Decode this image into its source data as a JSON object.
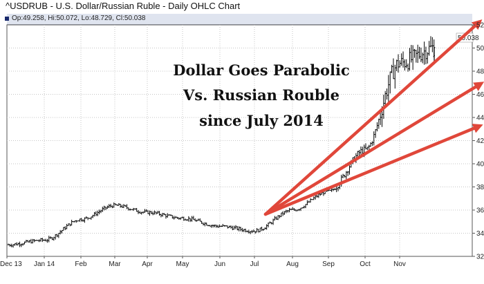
{
  "title": "^USDRUB - U.S. Dollar/Russian Ruble - Daily OHLC Chart",
  "ohlc_readout": "Op:49.258, Hi:50.072, Lo:48.729, Cl:50.038",
  "last_value_label": "50.038",
  "annotation": [
    "Dollar Goes Parabolic",
    "Vs. Russian Rouble",
    "since July 2014"
  ],
  "colors": {
    "candles": "#000000",
    "arrows": "#e0473a",
    "grid": "#c4c4c4",
    "header_bar": "#dfe4ef"
  },
  "chart_data": {
    "type": "line",
    "style": "daily OHLC bars",
    "grid": true,
    "x_tick_labels": [
      "Dec 13",
      "Jan 14",
      "Feb",
      "Mar",
      "Apr",
      "May",
      "Jun",
      "Jul",
      "Aug",
      "Sep",
      "Oct",
      "Nov"
    ],
    "y_tick_labels": [
      "32.000",
      "34.000",
      "36.000",
      "38.000",
      "40.000",
      "42.000",
      "44.000",
      "46.000",
      "48.000",
      "50.000",
      "52.000"
    ],
    "ylim": [
      32,
      52
    ],
    "last": {
      "open": 49.258,
      "high": 50.072,
      "low": 48.729,
      "close": 50.038
    },
    "series": [
      {
        "x": [
          "Dec 13",
          "Jan 14",
          "Feb",
          "Mar",
          "Apr",
          "May",
          "Jun",
          "Jul",
          "Aug",
          "Sep",
          "Oct",
          "Nov"
        ],
        "values": [
          33.0,
          33.4,
          35.2,
          36.4,
          35.8,
          35.3,
          34.6,
          34.2,
          36.0,
          37.6,
          41.2,
          48.7
        ]
      }
    ]
  }
}
